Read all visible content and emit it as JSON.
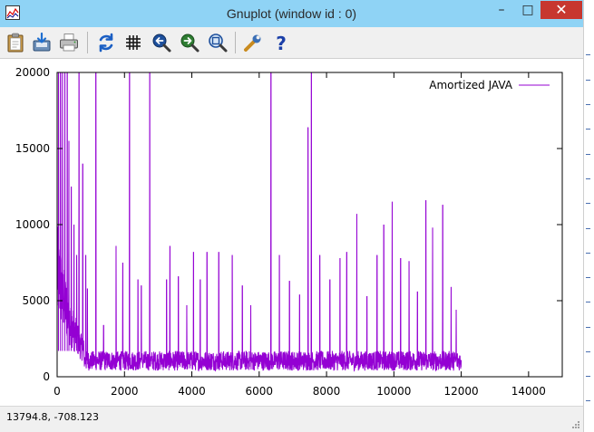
{
  "window": {
    "title": "Gnuplot (window id : 0)",
    "controls": {
      "minimize": "–",
      "maximize": "□",
      "close": "✕"
    }
  },
  "toolbar": {
    "items": [
      {
        "name": "copy-clipboard",
        "icon": "clipboard-icon"
      },
      {
        "name": "save",
        "icon": "save-icon"
      },
      {
        "name": "print",
        "icon": "printer-icon"
      },
      {
        "name": "replot",
        "icon": "refresh-icon"
      },
      {
        "name": "grid",
        "icon": "grid-icon"
      },
      {
        "name": "zoom-prev",
        "icon": "zoom-back-icon"
      },
      {
        "name": "zoom-next",
        "icon": "zoom-forward-icon"
      },
      {
        "name": "autoscale",
        "icon": "zoom-fit-icon"
      },
      {
        "name": "options",
        "icon": "wrench-icon"
      },
      {
        "name": "help",
        "icon": "help-icon"
      }
    ]
  },
  "status": {
    "coords": "13794.8, -708.123"
  },
  "colors": {
    "series": "#9400d3",
    "titlebar": "#8fd3f5",
    "close": "#c7372f"
  },
  "chart_data": {
    "type": "line",
    "title": "",
    "xlabel": "",
    "ylabel": "",
    "xlim": [
      0,
      15000
    ],
    "ylim": [
      0,
      20000
    ],
    "xticks": [
      0,
      2000,
      4000,
      6000,
      8000,
      10000,
      12000,
      14000
    ],
    "yticks": [
      0,
      5000,
      10000,
      15000,
      20000
    ],
    "grid": false,
    "legend_position": "top-right",
    "series": [
      {
        "name": "Amortized JAVA",
        "x_range": [
          0,
          12000
        ],
        "baseline_min": 400,
        "baseline_max": 1700,
        "decay_points": [
          {
            "x": 0,
            "y": 7000
          },
          {
            "x": 150,
            "y": 5500
          },
          {
            "x": 300,
            "y": 4200
          },
          {
            "x": 500,
            "y": 3000
          },
          {
            "x": 700,
            "y": 2000
          },
          {
            "x": 900,
            "y": 1400
          },
          {
            "x": 1100,
            "y": 1000
          }
        ],
        "spikes": [
          {
            "x": 40,
            "y": 20000
          },
          {
            "x": 100,
            "y": 20000
          },
          {
            "x": 160,
            "y": 20000
          },
          {
            "x": 230,
            "y": 20000
          },
          {
            "x": 300,
            "y": 20000
          },
          {
            "x": 350,
            "y": 15500
          },
          {
            "x": 420,
            "y": 12500
          },
          {
            "x": 500,
            "y": 10000
          },
          {
            "x": 580,
            "y": 8000
          },
          {
            "x": 650,
            "y": 20000
          },
          {
            "x": 760,
            "y": 14000
          },
          {
            "x": 850,
            "y": 8000
          },
          {
            "x": 900,
            "y": 5800
          },
          {
            "x": 1150,
            "y": 20000
          },
          {
            "x": 1380,
            "y": 3400
          },
          {
            "x": 1750,
            "y": 8600
          },
          {
            "x": 1950,
            "y": 7500
          },
          {
            "x": 2150,
            "y": 20000
          },
          {
            "x": 2400,
            "y": 6400
          },
          {
            "x": 2500,
            "y": 6000
          },
          {
            "x": 2750,
            "y": 20000
          },
          {
            "x": 3250,
            "y": 6400
          },
          {
            "x": 3350,
            "y": 8600
          },
          {
            "x": 3600,
            "y": 6600
          },
          {
            "x": 3850,
            "y": 4700
          },
          {
            "x": 4050,
            "y": 8200
          },
          {
            "x": 4250,
            "y": 6400
          },
          {
            "x": 4450,
            "y": 8200
          },
          {
            "x": 4800,
            "y": 8200
          },
          {
            "x": 5200,
            "y": 8000
          },
          {
            "x": 5500,
            "y": 6000
          },
          {
            "x": 5750,
            "y": 4700
          },
          {
            "x": 6350,
            "y": 20000
          },
          {
            "x": 6600,
            "y": 8000
          },
          {
            "x": 6900,
            "y": 6300
          },
          {
            "x": 7200,
            "y": 5400
          },
          {
            "x": 7450,
            "y": 16400
          },
          {
            "x": 7550,
            "y": 20000
          },
          {
            "x": 7800,
            "y": 8000
          },
          {
            "x": 8100,
            "y": 6400
          },
          {
            "x": 8400,
            "y": 7800
          },
          {
            "x": 8600,
            "y": 8200
          },
          {
            "x": 8900,
            "y": 10700
          },
          {
            "x": 9200,
            "y": 5300
          },
          {
            "x": 9500,
            "y": 8000
          },
          {
            "x": 9700,
            "y": 10000
          },
          {
            "x": 9950,
            "y": 11500
          },
          {
            "x": 10200,
            "y": 7800
          },
          {
            "x": 10450,
            "y": 7600
          },
          {
            "x": 10700,
            "y": 5600
          },
          {
            "x": 10950,
            "y": 11600
          },
          {
            "x": 11150,
            "y": 9800
          },
          {
            "x": 11450,
            "y": 11300
          },
          {
            "x": 11700,
            "y": 5900
          },
          {
            "x": 11850,
            "y": 4400
          }
        ]
      }
    ]
  }
}
